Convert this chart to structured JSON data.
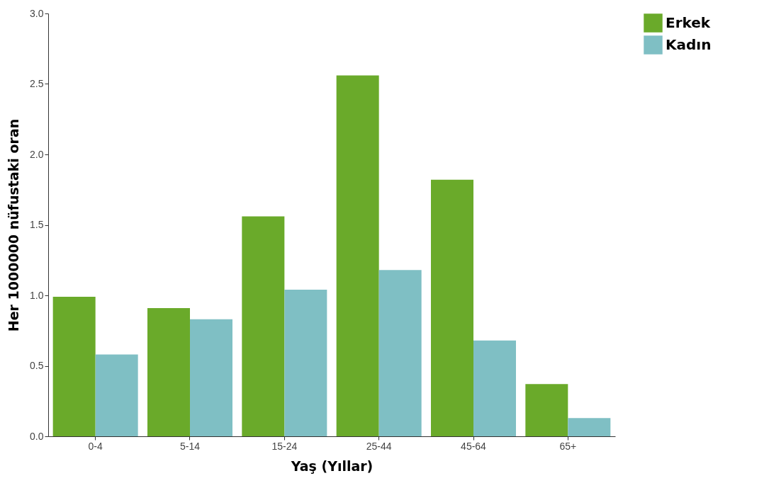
{
  "chart_data": {
    "type": "bar",
    "xlabel": "Yaş (Yıllar)",
    "ylabel": "Her 1000000 nüfustaki oran",
    "categories": [
      "0-4",
      "5-14",
      "15-24",
      "25-44",
      "45-64",
      "65+"
    ],
    "series": [
      {
        "name": "Erkek",
        "color": "#6aaa2a",
        "values": [
          0.99,
          0.91,
          1.56,
          2.56,
          1.82,
          0.37
        ]
      },
      {
        "name": "Kadın",
        "color": "#7fbfc4",
        "values": [
          0.58,
          0.83,
          1.04,
          1.18,
          0.68,
          0.13
        ]
      }
    ],
    "ylim": [
      0,
      3
    ],
    "yticks": [
      {
        "value": 0,
        "label": "0.0"
      },
      0.5,
      {
        "value": 1,
        "label": "1.0"
      },
      1.5,
      {
        "value": 2,
        "label": "2.0"
      },
      2.5,
      {
        "value": 3,
        "label": "3.0"
      }
    ],
    "grid": false,
    "legend": "right"
  }
}
